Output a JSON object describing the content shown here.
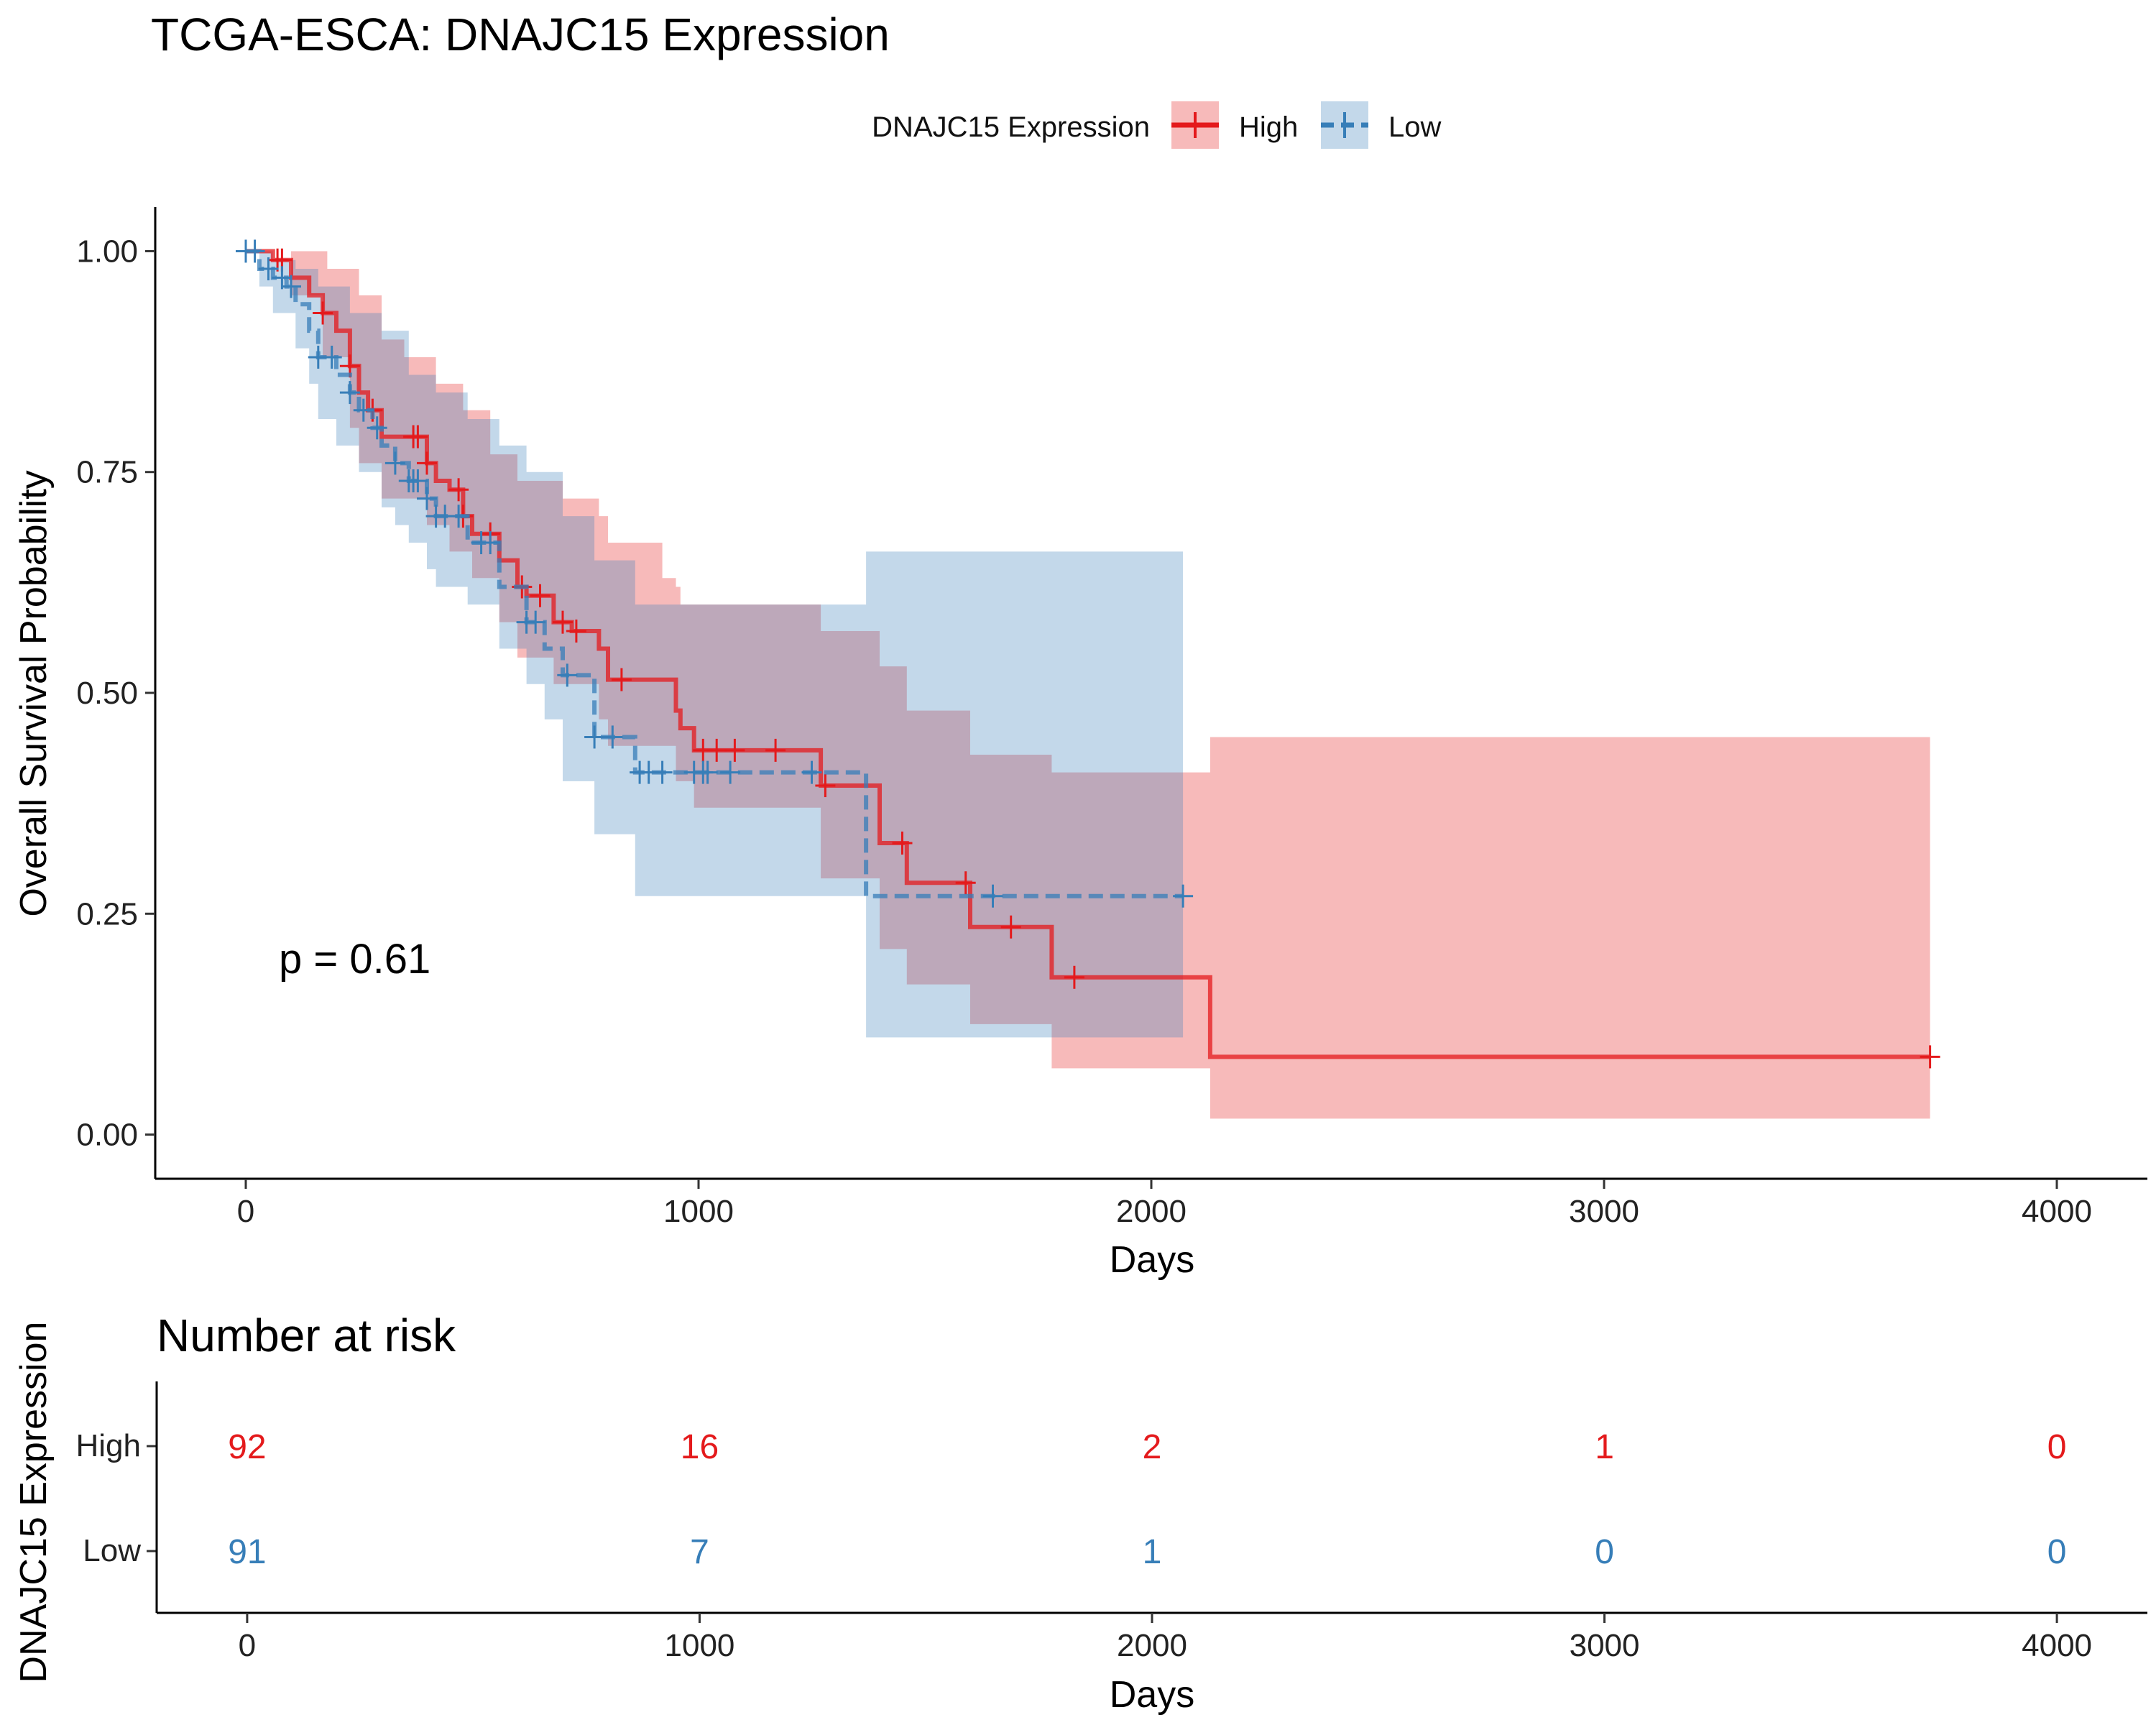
{
  "chart_data": [
    {
      "type": "line",
      "subtype": "kaplan-meier",
      "title": "TCGA-ESCA: DNAJC15 Expression",
      "xlabel": "Days",
      "ylabel": "Overall Survival Probability",
      "xlim": [
        -200,
        4200
      ],
      "ylim": [
        -0.05,
        1.05
      ],
      "xticks": [
        "0",
        "1000",
        "2000",
        "3000",
        "4000"
      ],
      "yticks": [
        "0.00",
        "0.25",
        "0.50",
        "0.75",
        "1.00"
      ],
      "legend": {
        "title": "DNAJC15 Expression",
        "position": "top",
        "labels": [
          "High",
          "Low"
        ]
      },
      "annotation": "p = 0.61",
      "series": [
        {
          "name": "High",
          "color": "#e41a1c",
          "line_style": "solid",
          "steps": [
            [
              0,
              1.0
            ],
            [
              20,
              1.0
            ],
            [
              60,
              0.99
            ],
            [
              100,
              0.97
            ],
            [
              140,
              0.95
            ],
            [
              170,
              0.93
            ],
            [
              200,
              0.91
            ],
            [
              230,
              0.87
            ],
            [
              250,
              0.84
            ],
            [
              270,
              0.82
            ],
            [
              300,
              0.79
            ],
            [
              330,
              0.79
            ],
            [
              380,
              0.79
            ],
            [
              400,
              0.76
            ],
            [
              420,
              0.74
            ],
            [
              450,
              0.73
            ],
            [
              480,
              0.7
            ],
            [
              500,
              0.68
            ],
            [
              560,
              0.65
            ],
            [
              600,
              0.62
            ],
            [
              620,
              0.61
            ],
            [
              680,
              0.58
            ],
            [
              720,
              0.57
            ],
            [
              780,
              0.55
            ],
            [
              800,
              0.515
            ],
            [
              950,
              0.48
            ],
            [
              960,
              0.46
            ],
            [
              990,
              0.435
            ],
            [
              1270,
              0.395
            ],
            [
              1400,
              0.33
            ],
            [
              1460,
              0.285
            ],
            [
              1600,
              0.235
            ],
            [
              1780,
              0.178
            ],
            [
              2130,
              0.088
            ],
            [
              3720,
              0.088
            ]
          ],
          "ci_upper": [
            [
              0,
              1.0
            ],
            [
              100,
              1.0
            ],
            [
              180,
              0.98
            ],
            [
              250,
              0.95
            ],
            [
              300,
              0.9
            ],
            [
              350,
              0.88
            ],
            [
              420,
              0.85
            ],
            [
              480,
              0.82
            ],
            [
              540,
              0.77
            ],
            [
              600,
              0.74
            ],
            [
              700,
              0.72
            ],
            [
              780,
              0.7
            ],
            [
              800,
              0.67
            ],
            [
              920,
              0.63
            ],
            [
              950,
              0.62
            ],
            [
              960,
              0.6
            ],
            [
              990,
              0.6
            ],
            [
              1270,
              0.57
            ],
            [
              1400,
              0.53
            ],
            [
              1460,
              0.48
            ],
            [
              1600,
              0.43
            ],
            [
              1780,
              0.41
            ],
            [
              2130,
              0.45
            ],
            [
              3720,
              0.45
            ]
          ],
          "ci_lower": [
            [
              0,
              1.0
            ],
            [
              100,
              0.95
            ],
            [
              170,
              0.88
            ],
            [
              230,
              0.8
            ],
            [
              250,
              0.76
            ],
            [
              300,
              0.72
            ],
            [
              380,
              0.72
            ],
            [
              400,
              0.69
            ],
            [
              450,
              0.66
            ],
            [
              500,
              0.63
            ],
            [
              560,
              0.58
            ],
            [
              600,
              0.54
            ],
            [
              680,
              0.51
            ],
            [
              780,
              0.47
            ],
            [
              800,
              0.44
            ],
            [
              950,
              0.4
            ],
            [
              990,
              0.37
            ],
            [
              1270,
              0.29
            ],
            [
              1400,
              0.21
            ],
            [
              1460,
              0.17
            ],
            [
              1600,
              0.125
            ],
            [
              1780,
              0.075
            ],
            [
              2130,
              0.018
            ],
            [
              3720,
              0.018
            ]
          ],
          "censor_x": [
            70,
            80,
            170,
            230,
            280,
            370,
            380,
            400,
            470,
            480,
            540,
            610,
            650,
            700,
            730,
            830,
            1010,
            1040,
            1080,
            1170,
            1280,
            1450,
            1590,
            1690,
            1830,
            3720
          ]
        },
        {
          "name": "Low",
          "color": "#377eb8",
          "line_style": "dashed",
          "steps": [
            [
              0,
              1.0
            ],
            [
              30,
              0.98
            ],
            [
              60,
              0.97
            ],
            [
              90,
              0.96
            ],
            [
              110,
              0.94
            ],
            [
              140,
              0.91
            ],
            [
              160,
              0.88
            ],
            [
              200,
              0.86
            ],
            [
              230,
              0.84
            ],
            [
              250,
              0.82
            ],
            [
              280,
              0.8
            ],
            [
              300,
              0.78
            ],
            [
              330,
              0.76
            ],
            [
              360,
              0.74
            ],
            [
              400,
              0.72
            ],
            [
              420,
              0.7
            ],
            [
              490,
              0.67
            ],
            [
              560,
              0.62
            ],
            [
              620,
              0.58
            ],
            [
              660,
              0.55
            ],
            [
              700,
              0.52
            ],
            [
              770,
              0.45
            ],
            [
              860,
              0.41
            ],
            [
              1370,
              0.27
            ],
            [
              2070,
              0.27
            ]
          ],
          "ci_upper": [
            [
              0,
              1.0
            ],
            [
              60,
              0.99
            ],
            [
              110,
              0.98
            ],
            [
              160,
              0.96
            ],
            [
              230,
              0.93
            ],
            [
              300,
              0.91
            ],
            [
              360,
              0.86
            ],
            [
              420,
              0.84
            ],
            [
              490,
              0.81
            ],
            [
              560,
              0.78
            ],
            [
              620,
              0.75
            ],
            [
              700,
              0.7
            ],
            [
              770,
              0.65
            ],
            [
              860,
              0.6
            ],
            [
              1370,
              0.66
            ],
            [
              2070,
              0.66
            ]
          ],
          "ci_lower": [
            [
              0,
              1.0
            ],
            [
              30,
              0.96
            ],
            [
              60,
              0.93
            ],
            [
              110,
              0.89
            ],
            [
              140,
              0.85
            ],
            [
              160,
              0.81
            ],
            [
              200,
              0.78
            ],
            [
              250,
              0.75
            ],
            [
              300,
              0.71
            ],
            [
              330,
              0.69
            ],
            [
              360,
              0.67
            ],
            [
              400,
              0.64
            ],
            [
              420,
              0.62
            ],
            [
              490,
              0.6
            ],
            [
              560,
              0.55
            ],
            [
              620,
              0.51
            ],
            [
              660,
              0.47
            ],
            [
              700,
              0.4
            ],
            [
              770,
              0.34
            ],
            [
              860,
              0.27
            ],
            [
              1370,
              0.11
            ],
            [
              2070,
              0.11
            ]
          ],
          "censor_x": [
            0,
            20,
            50,
            80,
            100,
            160,
            190,
            230,
            260,
            290,
            330,
            360,
            370,
            380,
            400,
            420,
            440,
            470,
            520,
            540,
            620,
            640,
            710,
            770,
            810,
            870,
            890,
            920,
            990,
            1010,
            1020,
            1070,
            1250,
            1650,
            2070
          ]
        }
      ]
    },
    {
      "type": "table",
      "title": "Number at risk",
      "xlabel": "Days",
      "ylabel": "DNAJC15 Expression",
      "xlim": [
        -200,
        4200
      ],
      "xticks": [
        "0",
        "1000",
        "2000",
        "3000",
        "4000"
      ],
      "time_points": [
        0,
        1000,
        2000,
        3000,
        4000
      ],
      "rows": [
        {
          "name": "High",
          "color": "#e41a1c",
          "values": [
            "92",
            "16",
            "2",
            "1",
            "0"
          ]
        },
        {
          "name": "Low",
          "color": "#377eb8",
          "values": [
            "91",
            "7",
            "1",
            "0",
            "0"
          ]
        }
      ]
    }
  ]
}
